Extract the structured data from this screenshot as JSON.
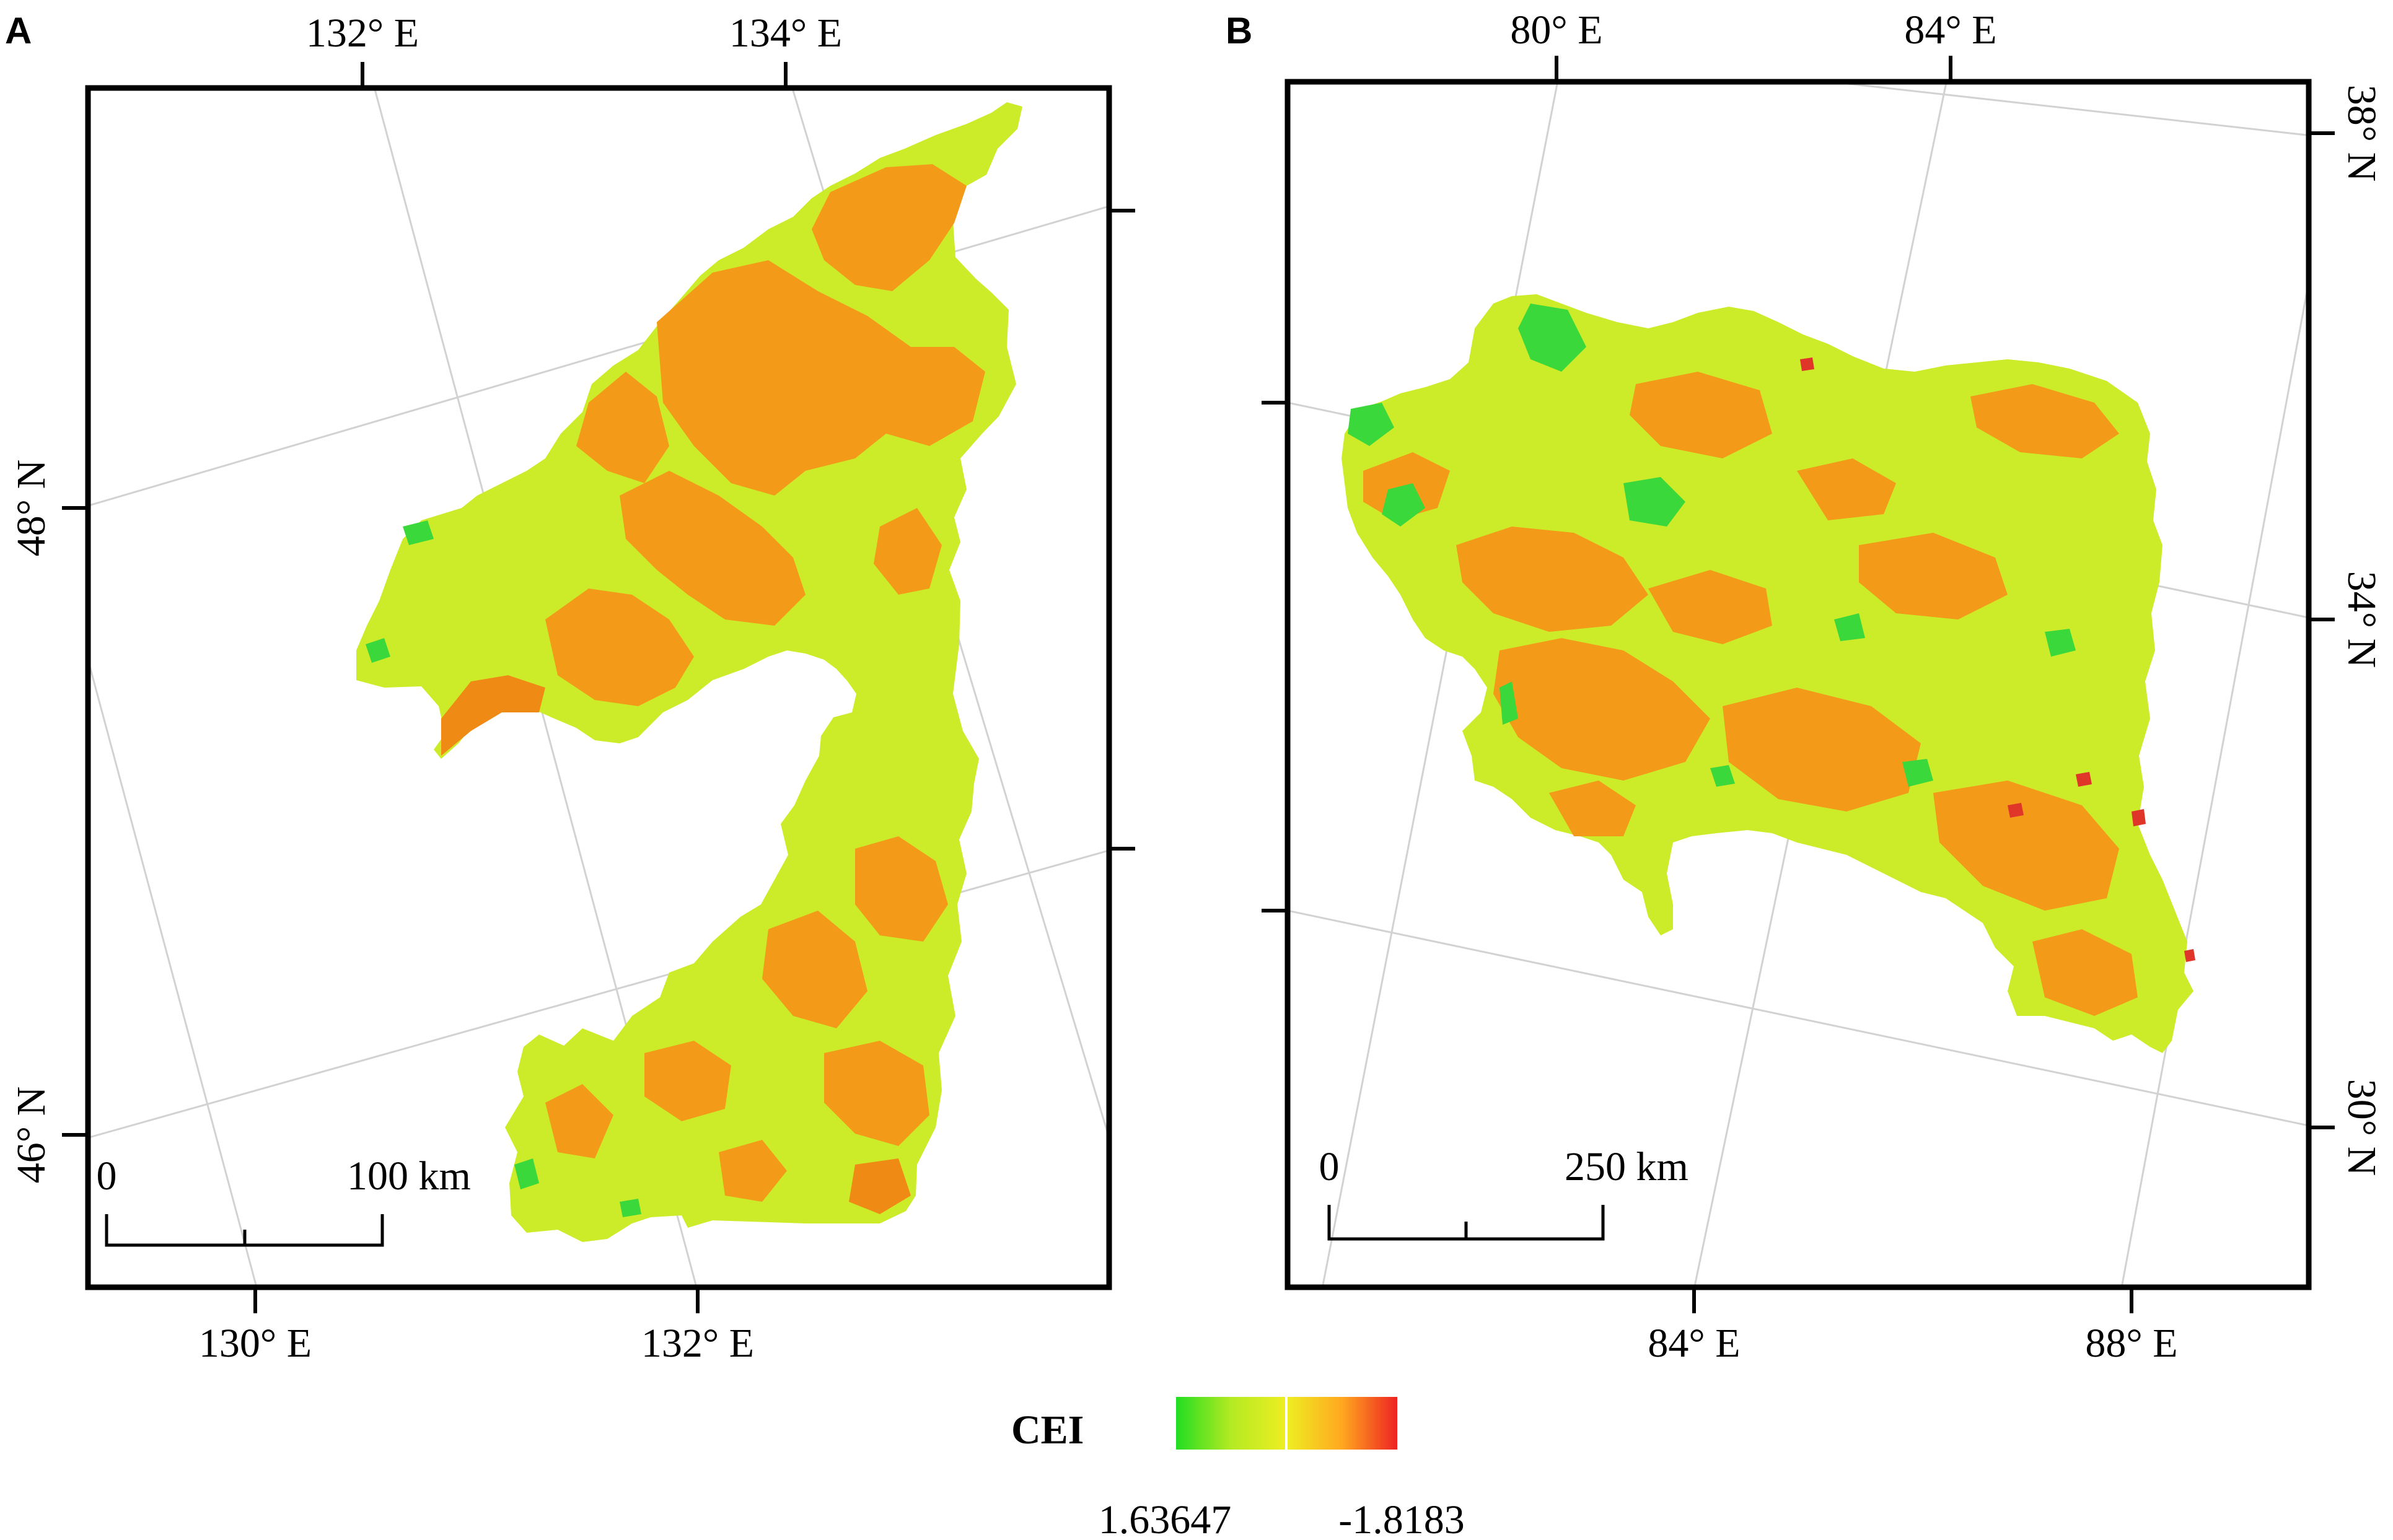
{
  "panels": [
    {
      "id": "A",
      "letter": "A",
      "top_labels": [
        "132° E",
        "134° E"
      ],
      "bottom_labels": [
        "130° E",
        "132° E"
      ],
      "left_labels": [
        "48° N",
        "46° N"
      ],
      "scale": {
        "zero": "0",
        "end": "100 km"
      }
    },
    {
      "id": "B",
      "letter": "B",
      "top_labels": [
        "80° E",
        "84° E"
      ],
      "bottom_labels": [
        "84° E",
        "88° E"
      ],
      "right_labels": [
        "38° N",
        "34° N",
        "30° N"
      ],
      "scale": {
        "zero": "0",
        "end": "250 km"
      }
    }
  ],
  "legend": {
    "title": "CEI",
    "min_label": "1.63647",
    "max_label": "-1.8183",
    "colors": [
      "#22dd22",
      "#ccee22",
      "#eeee22",
      "#ffaa22",
      "#ee2222"
    ]
  },
  "colors": {
    "region_base": "#ccec2a",
    "region_orange": "#f39a18",
    "region_green": "#3bd83b",
    "region_red": "#e0362a"
  }
}
